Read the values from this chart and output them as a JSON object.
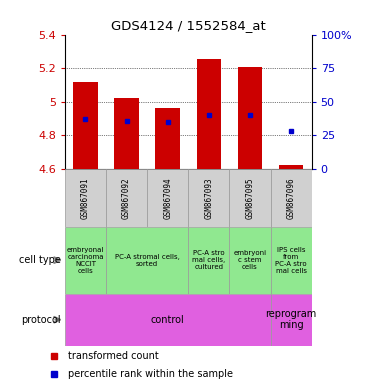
{
  "title": "GDS4124 / 1552584_at",
  "samples": [
    "GSM867091",
    "GSM867092",
    "GSM867094",
    "GSM867093",
    "GSM867095",
    "GSM867096"
  ],
  "transformed_count": [
    5.115,
    5.025,
    4.965,
    5.255,
    5.205,
    4.625
  ],
  "percentile_rank": [
    37,
    36,
    35,
    40,
    40,
    28
  ],
  "ylim_left": [
    4.6,
    5.4
  ],
  "ylim_right": [
    0,
    100
  ],
  "yticks_left": [
    4.6,
    4.8,
    5.0,
    5.2,
    5.4
  ],
  "yticks_right": [
    0,
    25,
    50,
    75,
    100
  ],
  "bar_bottom": 4.6,
  "bar_color": "#cc0000",
  "dot_color": "#0000cc",
  "bg_color": "#ffffff",
  "plot_bg": "#ffffff",
  "sample_band_color": "#d0d0d0",
  "left_label_color": "#cc0000",
  "right_label_color": "#0000cc",
  "cell_type_color": "#90e890",
  "protocol_color": "#e060e0",
  "cell_spans": [
    [
      0,
      0,
      "embryonal\ncarcinoma\nNCCIT\ncells"
    ],
    [
      1,
      2,
      "PC-A stromal cells,\nsorted"
    ],
    [
      3,
      3,
      "PC-A stro\nmal cells,\ncultured"
    ],
    [
      4,
      4,
      "embryoni\nc stem\ncells"
    ],
    [
      5,
      5,
      "IPS cells\nfrom\nPC-A stro\nmal cells"
    ]
  ],
  "prot_spans": [
    [
      0,
      4,
      "control"
    ],
    [
      5,
      5,
      "reprogram\nming"
    ]
  ]
}
